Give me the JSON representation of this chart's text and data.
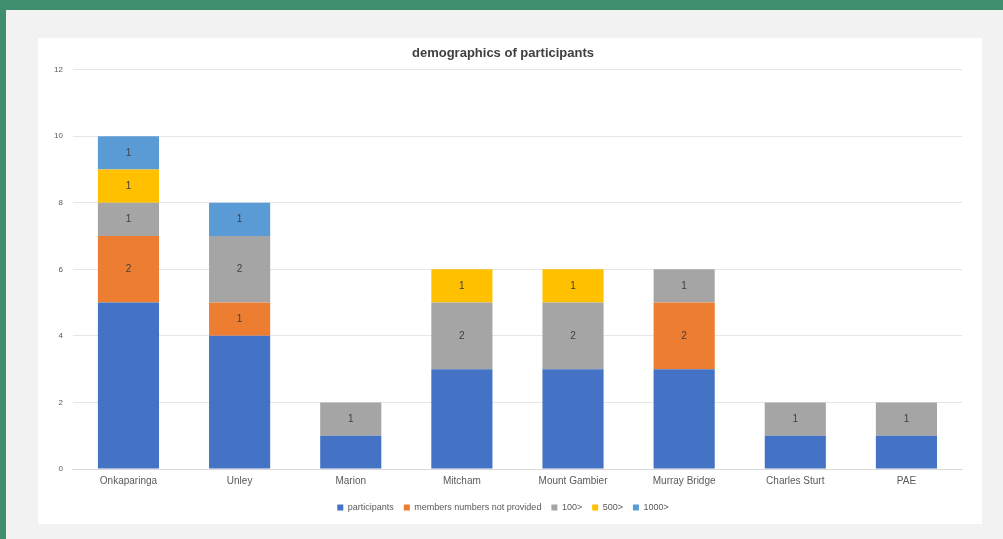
{
  "chart_data": {
    "type": "bar",
    "title": "demographics of participants",
    "stacked": true,
    "categories": [
      "Onkaparinga",
      "Unley",
      "Marion",
      "Mitcham",
      "Mount Gambier",
      "Murray Bridge",
      "Charles Sturt",
      "PAE"
    ],
    "series": [
      {
        "name": "participants",
        "color": "#4472c4",
        "values": [
          5,
          4,
          1,
          3,
          3,
          3,
          1,
          1
        ]
      },
      {
        "name": "members numbers not provided",
        "color": "#ed7d31",
        "values": [
          2,
          1,
          null,
          null,
          null,
          2,
          null,
          null
        ],
        "value_labels": [
          "2",
          "1",
          null,
          null,
          null,
          "2",
          null,
          null
        ]
      },
      {
        "name": "100>",
        "color": "#a5a5a5",
        "values": [
          1,
          2,
          1,
          2,
          2,
          1,
          1,
          1
        ],
        "value_labels": [
          "1",
          "2",
          "1",
          "2",
          "2",
          "1",
          "1",
          "1"
        ]
      },
      {
        "name": "500>",
        "color": "#ffc000",
        "values": [
          1,
          null,
          null,
          1,
          1,
          null,
          null,
          null
        ],
        "value_labels": [
          "1",
          null,
          null,
          "1",
          "1",
          null,
          null,
          null
        ]
      },
      {
        "name": "1000>",
        "color": "#5b9bd5",
        "values": [
          1,
          1,
          null,
          null,
          null,
          null,
          null,
          null
        ],
        "value_labels": [
          "1",
          "1",
          null,
          null,
          null,
          null,
          null,
          null
        ]
      }
    ],
    "ylim": [
      0,
      12
    ],
    "yticks": [
      0,
      2,
      4,
      6,
      8,
      10,
      12
    ],
    "grid": "y",
    "legend": "bottom"
  }
}
